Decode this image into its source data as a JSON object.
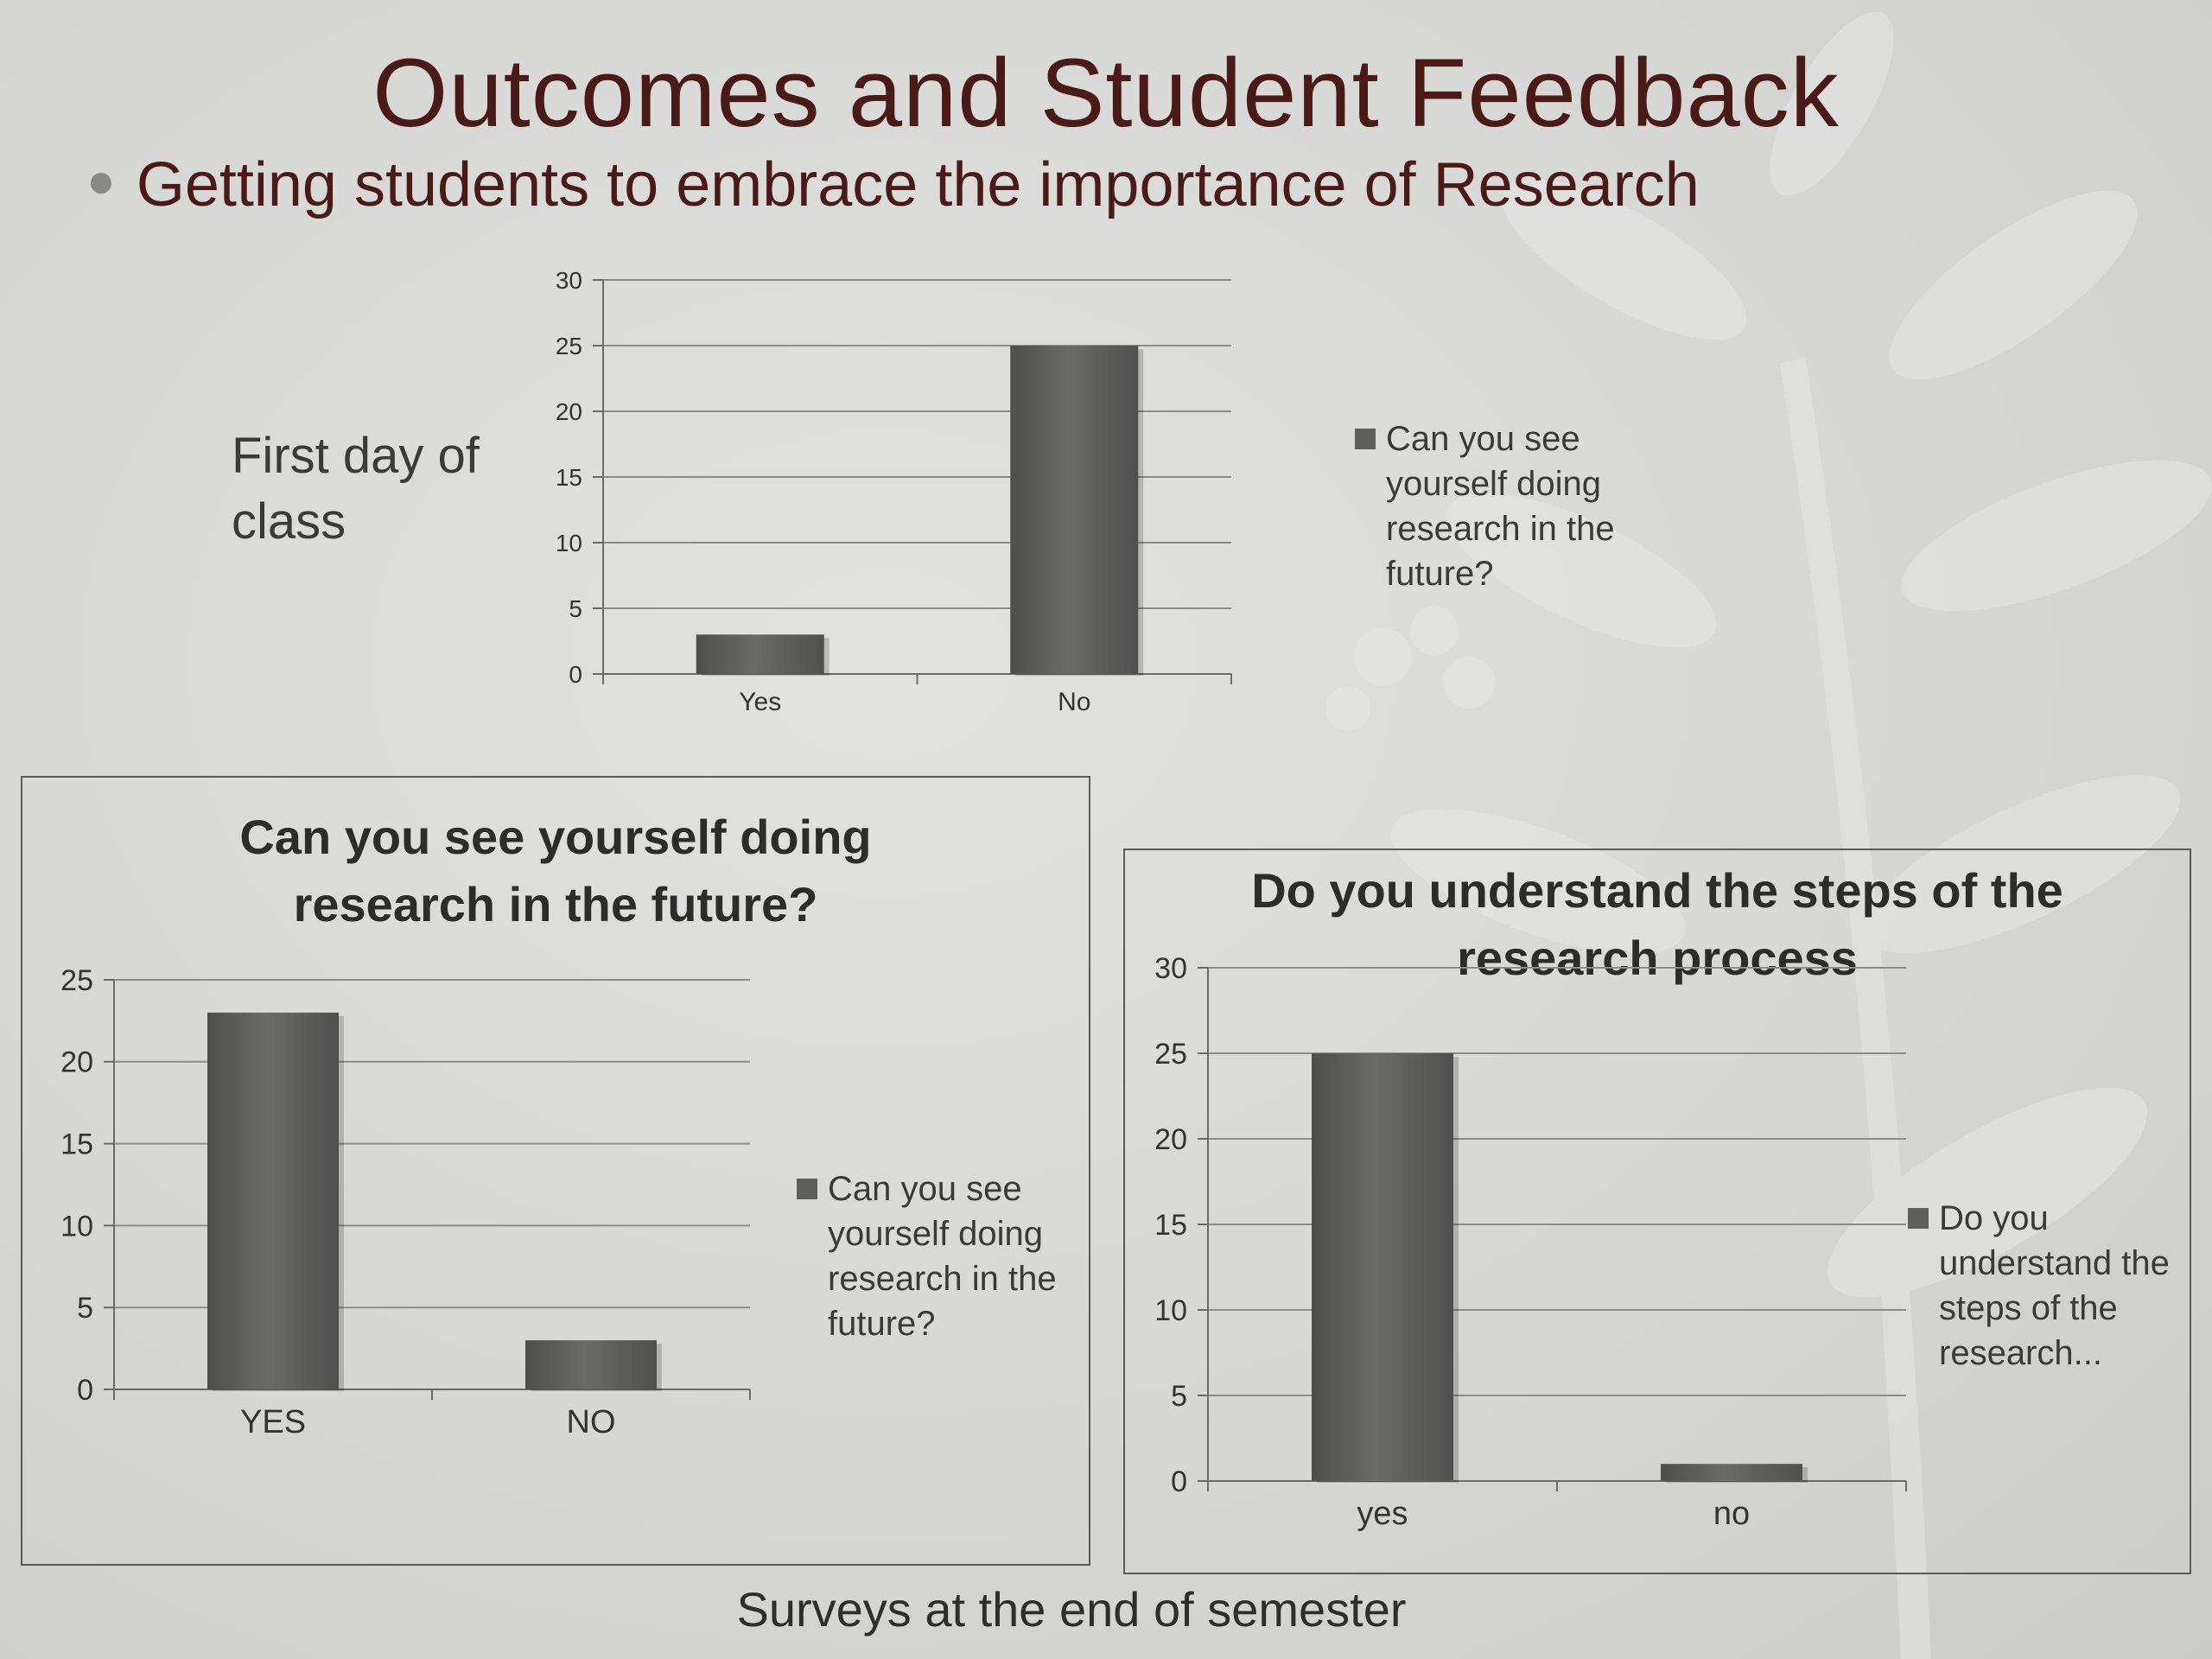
{
  "slide": {
    "title": "Outcomes and Student Feedback",
    "bullet": "Getting students to embrace the importance of Research",
    "side_label": "First day of class",
    "footer": "Surveys at the end of semester"
  },
  "colors": {
    "title": "#4a1a17",
    "bar": "#5f5f5d",
    "grid": "#8c8c8a",
    "background": "#d8d8d6"
  },
  "chart_data": [
    {
      "id": "chart-first-day",
      "type": "bar",
      "title": "",
      "categories": [
        "Yes",
        "No"
      ],
      "series": [
        {
          "name": "Can you see yourself doing research in the future?",
          "values": [
            3,
            25
          ]
        }
      ],
      "ylim": [
        0,
        30
      ],
      "yticks": [
        0,
        5,
        10,
        15,
        20,
        25,
        30
      ],
      "grid": true,
      "legend_position": "right",
      "legend_lines": [
        "Can you see",
        "yourself doing",
        "research in the",
        "future?"
      ]
    },
    {
      "id": "chart-future",
      "type": "bar",
      "title_lines": [
        "Can you see yourself doing",
        "research in the future?"
      ],
      "categories": [
        "YES",
        "NO"
      ],
      "series": [
        {
          "name": "Can you see yourself doing research in the future?",
          "values": [
            23,
            3
          ]
        }
      ],
      "ylim": [
        0,
        25
      ],
      "yticks": [
        0,
        5,
        10,
        15,
        20,
        25
      ],
      "grid": true,
      "legend_position": "right",
      "legend_lines": [
        "Can you see",
        "yourself doing",
        "research in the",
        "future?"
      ]
    },
    {
      "id": "chart-steps",
      "type": "bar",
      "title_lines": [
        "Do you understand the steps of the",
        "research process"
      ],
      "categories": [
        "yes",
        "no"
      ],
      "series": [
        {
          "name": "Do you understand the steps of the research...",
          "values": [
            25,
            1
          ]
        }
      ],
      "ylim": [
        0,
        30
      ],
      "yticks": [
        0,
        5,
        10,
        15,
        20,
        25,
        30
      ],
      "grid": true,
      "legend_position": "right",
      "legend_lines": [
        "Do you",
        "understand the",
        "steps of the",
        "research..."
      ]
    }
  ]
}
